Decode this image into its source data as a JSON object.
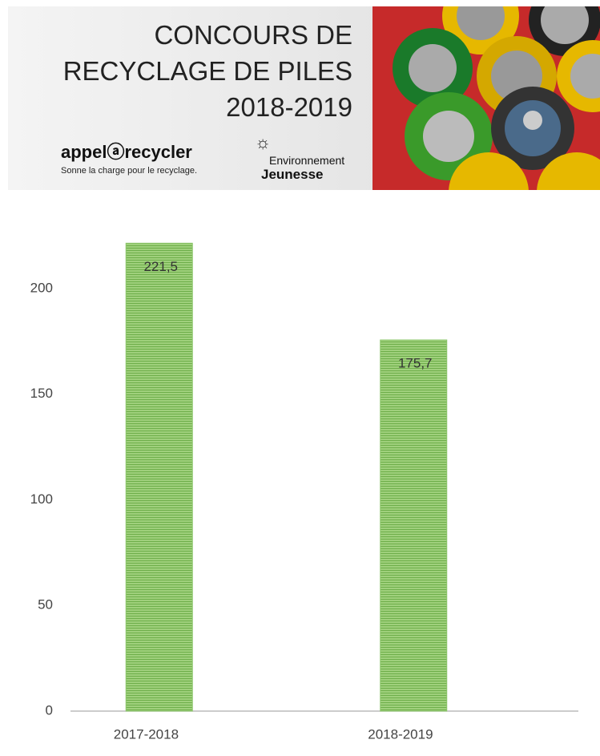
{
  "header": {
    "title": [
      "CONCOURS DE",
      "RECYCLAGE DE PILES",
      "2018-2019"
    ],
    "logo1": {
      "name": "appelⓐrecycler",
      "tagline": "Sonne la charge pour le recyclage."
    },
    "logo2": {
      "line1": "Environnement",
      "line2": "Jeunesse"
    }
  },
  "chart_data": {
    "type": "bar",
    "categories": [
      "2017-2018",
      "2018-2019"
    ],
    "values": [
      221.5,
      175.7
    ],
    "value_labels": [
      "221,5",
      "175,7"
    ],
    "color": "#8cc56a",
    "ylim": [
      0,
      240
    ],
    "yticks": [
      0,
      50,
      100,
      150,
      200
    ],
    "grid": false
  }
}
